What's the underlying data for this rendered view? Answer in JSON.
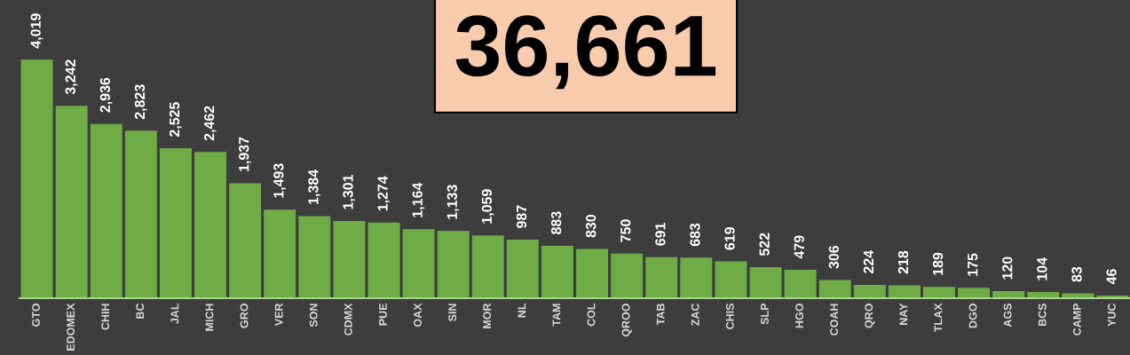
{
  "chart_data": {
    "type": "bar",
    "categories": [
      "GTO",
      "EDOMEX",
      "CHIH",
      "BC",
      "JAL",
      "MICH",
      "GRO",
      "VER",
      "SON",
      "CDMX",
      "PUE",
      "OAX",
      "SIN",
      "MOR",
      "NL",
      "TAM",
      "COL",
      "QROO",
      "TAB",
      "ZAC",
      "CHIS",
      "SLP",
      "HGO",
      "COAH",
      "QRO",
      "NAY",
      "TLAX",
      "DGO",
      "AGS",
      "BCS",
      "CAMP",
      "YUC"
    ],
    "values": [
      4019,
      3242,
      2936,
      2823,
      2525,
      2462,
      1937,
      1493,
      1384,
      1301,
      1274,
      1164,
      1133,
      1059,
      987,
      883,
      830,
      750,
      691,
      683,
      619,
      522,
      479,
      306,
      224,
      218,
      189,
      175,
      120,
      104,
      83,
      46
    ],
    "value_labels": [
      "4,019",
      "3,242",
      "2,936",
      "2,823",
      "2,525",
      "2,462",
      "1,937",
      "1,493",
      "1,384",
      "1,301",
      "1,274",
      "1,164",
      "1,133",
      "1,059",
      "987",
      "883",
      "830",
      "750",
      "691",
      "683",
      "619",
      "522",
      "479",
      "306",
      "224",
      "218",
      "189",
      "175",
      "120",
      "104",
      "83",
      "46"
    ],
    "color": "#6fac46",
    "tick_labels": "x",
    "annotations": [
      "36,661"
    ]
  }
}
